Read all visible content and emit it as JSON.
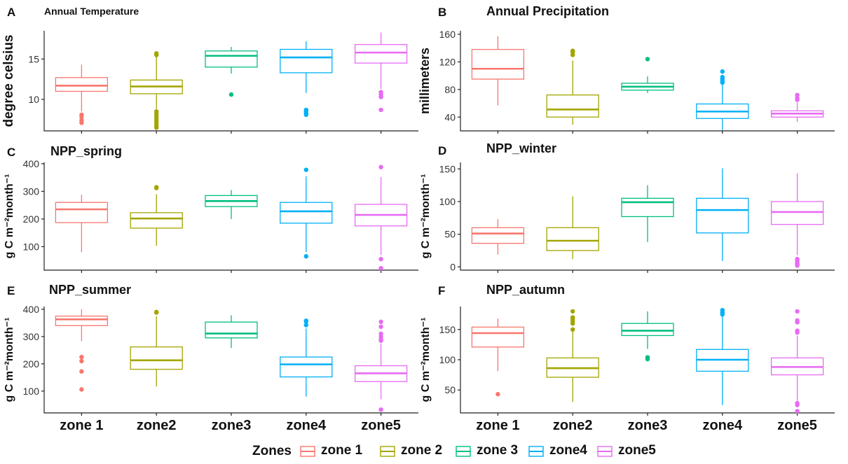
{
  "zones_legend": {
    "title": "Zones",
    "entries": [
      {
        "label": "zone 1",
        "color": "#F8766D"
      },
      {
        "label": "zone 2",
        "color": "#A3A500"
      },
      {
        "label": "zone 3",
        "color": "#00BF7D"
      },
      {
        "label": "zone4",
        "color": "#00B0F6"
      },
      {
        "label": "zone5",
        "color": "#E76BF3"
      }
    ]
  },
  "x_categories": [
    "zone 1",
    "zone2",
    "zone3",
    "zone4",
    "zone5"
  ],
  "chart_data": [
    {
      "panel": "A",
      "title": "Annual Temperature",
      "type": "box",
      "ylabel": "degree celsius",
      "yticks": [
        10,
        15
      ],
      "ylim": [
        6.1,
        18.5
      ],
      "grid": false,
      "boxes": [
        {
          "min": 8.5,
          "q1": 11.0,
          "median": 11.7,
          "q3": 12.7,
          "max": 14.3,
          "outliers": [
            8.1,
            7.8,
            7.4,
            7.1
          ]
        },
        {
          "min": 8.8,
          "q1": 10.7,
          "median": 11.6,
          "q3": 12.4,
          "max": 15.3,
          "outliers": [
            15.7,
            15.5,
            8.5,
            8.2,
            7.9,
            7.6,
            7.3,
            7.0,
            6.7,
            6.5
          ]
        },
        {
          "min": 13.2,
          "q1": 14.0,
          "median": 15.4,
          "q3": 16.0,
          "max": 16.5,
          "outliers": [
            10.6
          ]
        },
        {
          "min": 10.8,
          "q1": 13.3,
          "median": 15.2,
          "q3": 16.2,
          "max": 17.2,
          "outliers": [
            8.7,
            8.5,
            8.3,
            8.1
          ]
        },
        {
          "min": 11.3,
          "q1": 14.5,
          "median": 15.8,
          "q3": 16.8,
          "max": 18.3,
          "outliers": [
            10.9,
            10.6,
            10.3,
            8.7
          ]
        }
      ]
    },
    {
      "panel": "B",
      "title": "Annual Precipitation",
      "type": "box",
      "ylabel": "millimeters",
      "yticks": [
        40,
        80,
        120,
        160
      ],
      "ylim": [
        20,
        165
      ],
      "grid": false,
      "boxes": [
        {
          "min": 57,
          "q1": 95,
          "median": 110,
          "q3": 138,
          "max": 157,
          "outliers": []
        },
        {
          "min": 29,
          "q1": 40,
          "median": 51,
          "q3": 72,
          "max": 122,
          "outliers": [
            136,
            134,
            130
          ]
        },
        {
          "min": 75,
          "q1": 79,
          "median": 84,
          "q3": 89,
          "max": 99,
          "outliers": [
            124
          ]
        },
        {
          "min": 21,
          "q1": 38,
          "median": 48,
          "q3": 59,
          "max": 88,
          "outliers": [
            106,
            98,
            95,
            92,
            90
          ]
        },
        {
          "min": 33,
          "q1": 40,
          "median": 45,
          "q3": 49,
          "max": 61,
          "outliers": [
            72,
            68,
            65
          ]
        }
      ]
    },
    {
      "panel": "C",
      "title": "NPP_spring",
      "type": "box",
      "ylabel": "g C m⁻²month⁻¹",
      "yticks": [
        100,
        200,
        300,
        400
      ],
      "ylim": [
        15,
        405
      ],
      "grid": false,
      "boxes": [
        {
          "min": 80,
          "q1": 187,
          "median": 235,
          "q3": 260,
          "max": 288,
          "outliers": []
        },
        {
          "min": 103,
          "q1": 167,
          "median": 202,
          "q3": 223,
          "max": 290,
          "outliers": [
            315,
            312
          ]
        },
        {
          "min": 200,
          "q1": 245,
          "median": 265,
          "q3": 285,
          "max": 305,
          "outliers": []
        },
        {
          "min": 80,
          "q1": 185,
          "median": 228,
          "q3": 260,
          "max": 355,
          "outliers": [
            378,
            65
          ]
        },
        {
          "min": 70,
          "q1": 175,
          "median": 215,
          "q3": 253,
          "max": 352,
          "outliers": [
            388,
            55,
            22
          ]
        }
      ]
    },
    {
      "panel": "D",
      "title": "NPP_winter",
      "type": "box",
      "ylabel": "g C m⁻²month⁻¹",
      "yticks": [
        0,
        50,
        100,
        150
      ],
      "ylim": [
        -5,
        160
      ],
      "grid": false,
      "boxes": [
        {
          "min": 19,
          "q1": 36,
          "median": 51,
          "q3": 60,
          "max": 73,
          "outliers": []
        },
        {
          "min": 12,
          "q1": 25,
          "median": 40,
          "q3": 60,
          "max": 108,
          "outliers": []
        },
        {
          "min": 38,
          "q1": 77,
          "median": 99,
          "q3": 105,
          "max": 125,
          "outliers": []
        },
        {
          "min": 9,
          "q1": 52,
          "median": 87,
          "q3": 105,
          "max": 151,
          "outliers": []
        },
        {
          "min": 18,
          "q1": 65,
          "median": 84,
          "q3": 100,
          "max": 143,
          "outliers": [
            12,
            10,
            8,
            6,
            4,
            3,
            2
          ]
        }
      ]
    },
    {
      "panel": "E",
      "title": "NPP_summer",
      "type": "box",
      "ylabel": "g C m⁻²month⁻¹",
      "yticks": [
        100,
        200,
        300,
        400
      ],
      "ylim": [
        20,
        410
      ],
      "grid": false,
      "boxes": [
        {
          "min": 283,
          "q1": 340,
          "median": 363,
          "q3": 375,
          "max": 400,
          "outliers": [
            225,
            210,
            172,
            106
          ]
        },
        {
          "min": 117,
          "q1": 180,
          "median": 213,
          "q3": 262,
          "max": 375,
          "outliers": [
            390,
            388
          ]
        },
        {
          "min": 258,
          "q1": 295,
          "median": 311,
          "q3": 353,
          "max": 378,
          "outliers": []
        },
        {
          "min": 80,
          "q1": 152,
          "median": 198,
          "q3": 225,
          "max": 330,
          "outliers": [
            358,
            355,
            342
          ]
        },
        {
          "min": 70,
          "q1": 135,
          "median": 165,
          "q3": 193,
          "max": 275,
          "outliers": [
            354,
            336,
            310,
            300,
            290,
            285,
            32
          ]
        }
      ]
    },
    {
      "panel": "F",
      "title": "NPP_autumn",
      "type": "box",
      "ylabel": "g C m⁻²month⁻¹",
      "yticks": [
        50,
        100,
        150
      ],
      "ylim": [
        12,
        188
      ],
      "grid": false,
      "boxes": [
        {
          "min": 81,
          "q1": 121,
          "median": 144,
          "q3": 154,
          "max": 168,
          "outliers": [
            43
          ]
        },
        {
          "min": 30,
          "q1": 71,
          "median": 86,
          "q3": 103,
          "max": 148,
          "outliers": [
            180,
            170,
            167,
            164,
            160,
            150
          ]
        },
        {
          "min": 118,
          "q1": 140,
          "median": 148,
          "q3": 160,
          "max": 180,
          "outliers": [
            104,
            101
          ]
        },
        {
          "min": 25,
          "q1": 81,
          "median": 100,
          "q3": 117,
          "max": 172,
          "outliers": [
            182,
            178,
            175
          ]
        },
        {
          "min": 30,
          "q1": 75,
          "median": 88,
          "q3": 103,
          "max": 140,
          "outliers": [
            180,
            165,
            162,
            148,
            145,
            28,
            25,
            15
          ]
        }
      ]
    }
  ]
}
